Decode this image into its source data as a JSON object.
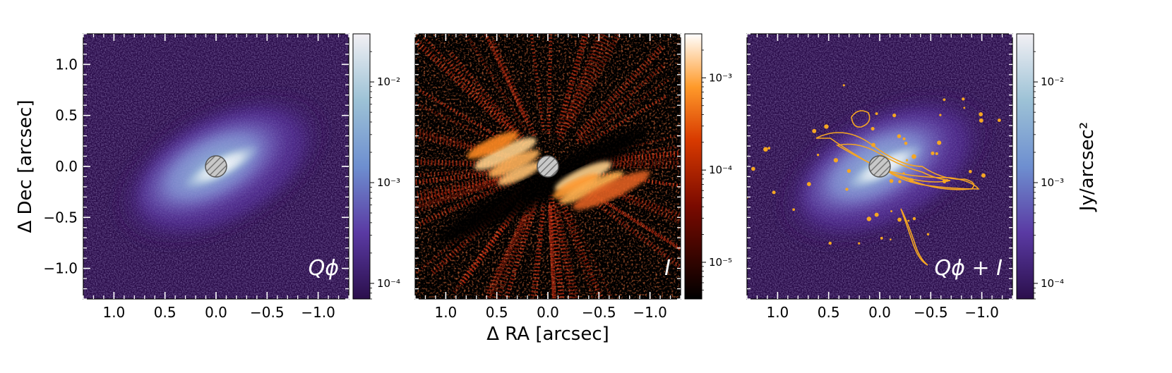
{
  "chart_data": [
    {
      "type": "heatmap",
      "panel_label": "Qϕ",
      "xlabel": "",
      "ylabel": "Δ Dec [arcsec]",
      "x_ticks": [
        "1.0",
        "0.5",
        "0.0",
        "−0.5",
        "−1.0"
      ],
      "x_tick_values": [
        1.0,
        0.5,
        0.0,
        -0.5,
        -1.0
      ],
      "y_ticks": [
        "1.0",
        "0.5",
        "0.0",
        "−0.5",
        "−1.0"
      ],
      "y_tick_values": [
        1.0,
        0.5,
        0.0,
        -0.5,
        -1.0
      ],
      "xlim": [
        1.3,
        -1.3
      ],
      "ylim": [
        -1.3,
        1.3
      ],
      "colormap": "twilight-purple",
      "colorbar": {
        "scale": "log",
        "range": [
          7e-05,
          0.03
        ],
        "ticks": [
          "10⁻⁴",
          "10⁻³",
          "10⁻²"
        ],
        "tick_values": [
          0.0001,
          0.001,
          0.01
        ],
        "label": ""
      },
      "features": "inclined disk, major axis PA ~ 62°, central coronagraph mask (hatched)"
    },
    {
      "type": "heatmap",
      "panel_label": "I",
      "xlabel": "Δ RA [arcsec]",
      "ylabel": "",
      "x_ticks": [
        "1.0",
        "0.5",
        "0.0",
        "−0.5",
        "−1.0"
      ],
      "x_tick_values": [
        1.0,
        0.5,
        0.0,
        -0.5,
        -1.0
      ],
      "y_ticks": [],
      "xlim": [
        1.3,
        -1.3
      ],
      "ylim": [
        -1.3,
        1.3
      ],
      "colormap": "gist-heat",
      "colorbar": {
        "scale": "log",
        "range": [
          4e-06,
          0.003
        ],
        "ticks": [
          "10⁻⁵",
          "10⁻⁴",
          "10⁻³"
        ],
        "tick_values": [
          1e-05,
          0.0001,
          0.001
        ],
        "label": ""
      },
      "features": "total intensity with radial speckle residuals, central coronagraph mask (hatched)"
    },
    {
      "type": "heatmap",
      "panel_label": "Qϕ + I",
      "xlabel": "",
      "ylabel": "",
      "x_ticks": [
        "1.0",
        "0.5",
        "0.0",
        "−0.5",
        "−1.0"
      ],
      "x_tick_values": [
        1.0,
        0.5,
        0.0,
        -0.5,
        -1.0
      ],
      "y_ticks": [],
      "xlim": [
        1.3,
        -1.3
      ],
      "ylim": [
        -1.3,
        1.3
      ],
      "colormap": "twilight-purple",
      "contour_color": "#f5a623",
      "colorbar": {
        "scale": "log",
        "range": [
          7e-05,
          0.03
        ],
        "ticks": [
          "10⁻⁴",
          "10⁻³",
          "10⁻²"
        ],
        "tick_values": [
          0.0001,
          0.001,
          0.01
        ],
        "label": "Jy/arcsec²"
      },
      "features": "Qϕ image overlaid with orange contours of I"
    }
  ]
}
